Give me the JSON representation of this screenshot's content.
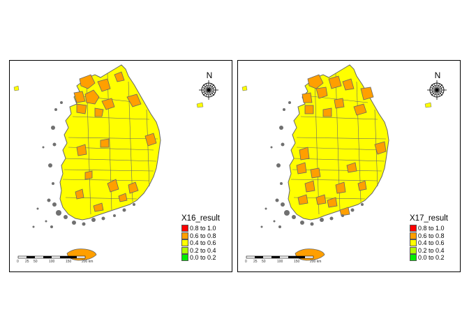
{
  "maps": [
    {
      "legend_title": "X16_result",
      "north_label": "N",
      "scale": {
        "ticks": [
          "0",
          "25",
          "50",
          "100",
          "150",
          "200 km"
        ]
      },
      "regions_color_pattern": "left",
      "legend_items": [
        {
          "label": "0.8 to 1.0",
          "color": "#ff0000"
        },
        {
          "label": "0.6 to 0.8",
          "color": "#ff9f00"
        },
        {
          "label": "0.4 to 0.6",
          "color": "#ffff00"
        },
        {
          "label": "0.2 to 0.4",
          "color": "#b0ff00"
        },
        {
          "label": "0.0 to 0.2",
          "color": "#00ee00"
        }
      ]
    },
    {
      "legend_title": "X17_result",
      "north_label": "N",
      "scale": {
        "ticks": [
          "0",
          "25",
          "50",
          "100",
          "150",
          "200 km"
        ]
      },
      "regions_color_pattern": "right",
      "legend_items": [
        {
          "label": "0.8 to 1.0",
          "color": "#ff0000"
        },
        {
          "label": "0.6 to 0.8",
          "color": "#ff9f00"
        },
        {
          "label": "0.4 to 0.6",
          "color": "#ffff00"
        },
        {
          "label": "0.2 to 0.4",
          "color": "#b0ff00"
        },
        {
          "label": "0.0 to 0.2",
          "color": "#00ee00"
        }
      ]
    }
  ],
  "colors": {
    "base": "#ffff00",
    "high": "#ff9f00",
    "border": "#666666",
    "islands": "#707070"
  }
}
